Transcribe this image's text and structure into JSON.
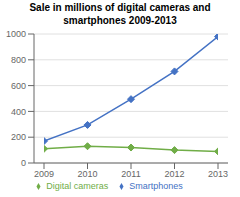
{
  "chart_data": {
    "type": "line",
    "title": "Sale in millions of digital cameras and\nsmartphones 2009-2013",
    "x": [
      2009,
      2010,
      2011,
      2012,
      2013
    ],
    "xlim": [
      2009,
      2013
    ],
    "xticks": [
      2009,
      2010,
      2011,
      2012,
      2013
    ],
    "ylim": [
      0,
      1000
    ],
    "yticks": [
      0,
      200,
      400,
      600,
      800,
      1000
    ],
    "grid": true,
    "legend": "bottom",
    "marker": "diamond",
    "series": [
      {
        "name": "Smartphones",
        "color": "#4472C4",
        "values": [
          170,
          295,
          495,
          710,
          980
        ]
      },
      {
        "name": "Digital cameras",
        "color": "#70AD47",
        "values": [
          110,
          130,
          120,
          100,
          90
        ]
      }
    ]
  }
}
